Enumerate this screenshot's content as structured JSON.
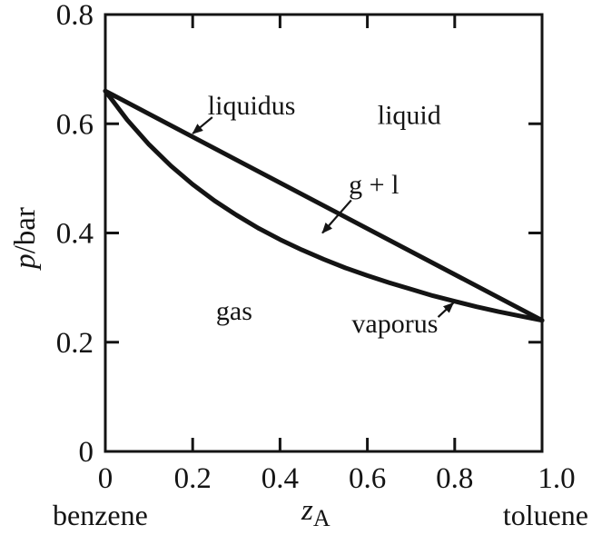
{
  "chart_data": {
    "type": "line",
    "title": "",
    "xlabel_italic": "z",
    "xlabel_sub": "A",
    "ylabel_italic": "p",
    "ylabel_rest": "/bar",
    "left_label": "benzene",
    "right_label": "toluene",
    "xlim": [
      0,
      1.0
    ],
    "ylim": [
      0,
      0.8
    ],
    "x_ticks": [
      0,
      0.2,
      0.4,
      0.6,
      0.8,
      1.0
    ],
    "x_tick_labels": [
      "0",
      "0.2",
      "0.4",
      "0.6",
      "0.8",
      "1.0"
    ],
    "y_ticks": [
      0,
      0.2,
      0.4,
      0.6,
      0.8
    ],
    "y_tick_labels": [
      "0",
      "0.2",
      "0.4",
      "0.6",
      "0.8"
    ],
    "grid": false,
    "line_color": "#141414",
    "series": [
      {
        "name": "liquidus",
        "x": [
          0,
          1.0
        ],
        "y": [
          0.66,
          0.24
        ]
      },
      {
        "name": "vaporus",
        "x": [
          0,
          0.05,
          0.1,
          0.15,
          0.2,
          0.25,
          0.3,
          0.35,
          0.4,
          0.45,
          0.5,
          0.55,
          0.6,
          0.65,
          0.7,
          0.75,
          0.8,
          0.85,
          0.9,
          0.95,
          1.0
        ],
        "y": [
          0.66,
          0.607,
          0.562,
          0.523,
          0.489,
          0.459,
          0.433,
          0.409,
          0.388,
          0.369,
          0.352,
          0.336,
          0.322,
          0.309,
          0.297,
          0.285,
          0.275,
          0.265,
          0.256,
          0.248,
          0.24
        ]
      }
    ],
    "annotations": [
      {
        "text": "liquidus",
        "x": 0.335,
        "y": 0.617,
        "arrow": {
          "from": [
            0.245,
            0.612
          ],
          "to": [
            0.2,
            0.582
          ]
        }
      },
      {
        "text": "liquid",
        "x": 0.696,
        "y": 0.6,
        "arrow": null
      },
      {
        "text": "g + l",
        "x": 0.615,
        "y": 0.472,
        "arrow": {
          "from": [
            0.563,
            0.46
          ],
          "to": [
            0.497,
            0.4
          ]
        }
      },
      {
        "text": "gas",
        "x": 0.295,
        "y": 0.241,
        "arrow": null
      },
      {
        "text": "vaporus",
        "x": 0.663,
        "y": 0.218,
        "arrow": {
          "from": [
            0.762,
            0.246
          ],
          "to": [
            0.797,
            0.272
          ]
        }
      }
    ]
  }
}
